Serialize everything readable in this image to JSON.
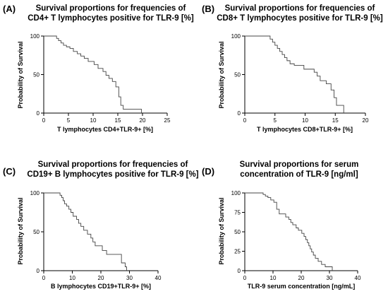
{
  "chart_data": [
    {
      "type": "line",
      "panel": "(A)",
      "title": [
        "Survival proportions for frequencies of",
        "CD4+ T lymphocytes positive for TLR-9 [%]"
      ],
      "xlabel": "T lymphocytes CD4+TLR-9+ [%]",
      "ylabel": "Probability of Survival",
      "xlim": [
        0,
        25
      ],
      "ylim": [
        0,
        100
      ],
      "xticks": [
        0,
        5,
        10,
        15,
        20,
        25
      ],
      "yticks": [
        0,
        50,
        100
      ],
      "series": [
        {
          "steps": [
            [
              0,
              100
            ],
            [
              2.6,
              100
            ],
            [
              2.6,
              97
            ],
            [
              3.0,
              97
            ],
            [
              3.0,
              94
            ],
            [
              3.5,
              94
            ],
            [
              3.5,
              91
            ],
            [
              4.0,
              91
            ],
            [
              4.0,
              88
            ],
            [
              4.6,
              88
            ],
            [
              4.6,
              86
            ],
            [
              5.3,
              86
            ],
            [
              5.3,
              84
            ],
            [
              6.0,
              84
            ],
            [
              6.0,
              80
            ],
            [
              6.8,
              80
            ],
            [
              6.8,
              77
            ],
            [
              7.5,
              77
            ],
            [
              7.5,
              74
            ],
            [
              8.2,
              74
            ],
            [
              8.2,
              71
            ],
            [
              9.0,
              71
            ],
            [
              9.0,
              67
            ],
            [
              10.2,
              67
            ],
            [
              10.2,
              63
            ],
            [
              11.0,
              63
            ],
            [
              11.0,
              58
            ],
            [
              12.0,
              58
            ],
            [
              12.0,
              54
            ],
            [
              12.6,
              54
            ],
            [
              12.6,
              49
            ],
            [
              13.2,
              49
            ],
            [
              13.2,
              45
            ],
            [
              13.9,
              45
            ],
            [
              13.9,
              41
            ],
            [
              14.6,
              41
            ],
            [
              14.6,
              34
            ],
            [
              15.2,
              34
            ],
            [
              15.2,
              21
            ],
            [
              15.6,
              21
            ],
            [
              15.6,
              10
            ],
            [
              16.1,
              10
            ],
            [
              16.1,
              5
            ],
            [
              19.8,
              5
            ],
            [
              19.8,
              0
            ]
          ]
        }
      ]
    },
    {
      "type": "line",
      "panel": "(B)",
      "title": [
        "Survival proportions for frequencies of",
        "CD8+ T lymphocytes positive for TLR-9 [%]"
      ],
      "xlabel": "T lymphocytes CD8+TLR-9+ [%]",
      "ylabel": "Probability of Survival",
      "xlim": [
        0,
        20
      ],
      "ylim": [
        0,
        100
      ],
      "xticks": [
        0,
        5,
        10,
        15,
        20
      ],
      "yticks": [
        0,
        50,
        100
      ],
      "series": [
        {
          "steps": [
            [
              0,
              100
            ],
            [
              4.2,
              100
            ],
            [
              4.2,
              96
            ],
            [
              4.6,
              96
            ],
            [
              4.6,
              92
            ],
            [
              5.0,
              92
            ],
            [
              5.0,
              88
            ],
            [
              5.4,
              88
            ],
            [
              5.4,
              84
            ],
            [
              5.8,
              84
            ],
            [
              5.8,
              80
            ],
            [
              6.2,
              80
            ],
            [
              6.2,
              76
            ],
            [
              6.6,
              76
            ],
            [
              6.6,
              72
            ],
            [
              7.0,
              72
            ],
            [
              7.0,
              68
            ],
            [
              7.5,
              68
            ],
            [
              7.5,
              64
            ],
            [
              8.2,
              64
            ],
            [
              8.2,
              62
            ],
            [
              9.8,
              62
            ],
            [
              9.8,
              57
            ],
            [
              11.5,
              57
            ],
            [
              11.5,
              53
            ],
            [
              12.0,
              53
            ],
            [
              12.0,
              48
            ],
            [
              12.5,
              48
            ],
            [
              12.5,
              42
            ],
            [
              13.5,
              42
            ],
            [
              13.5,
              38
            ],
            [
              14.3,
              38
            ],
            [
              14.3,
              30
            ],
            [
              14.8,
              30
            ],
            [
              14.8,
              20
            ],
            [
              15.2,
              20
            ],
            [
              15.2,
              10
            ],
            [
              16.4,
              10
            ],
            [
              16.4,
              0
            ]
          ]
        }
      ]
    },
    {
      "type": "line",
      "panel": "(C)",
      "title": [
        "Survival proportions for frequencies of",
        "CD19+ B lymphocytes positive for TLR-9 [%]"
      ],
      "xlabel": "B lymphocytes CD19+TLR-9+ [%]",
      "ylabel": "Probability of Survival",
      "xlim": [
        0,
        40
      ],
      "ylim": [
        0,
        100
      ],
      "xticks": [
        0,
        10,
        20,
        30,
        40
      ],
      "yticks": [
        0,
        50,
        100
      ],
      "series": [
        {
          "steps": [
            [
              0,
              100
            ],
            [
              5.7,
              100
            ],
            [
              5.7,
              97
            ],
            [
              6.3,
              97
            ],
            [
              6.3,
              94
            ],
            [
              6.8,
              94
            ],
            [
              6.8,
              90
            ],
            [
              7.3,
              90
            ],
            [
              7.3,
              86
            ],
            [
              8.0,
              86
            ],
            [
              8.0,
              83
            ],
            [
              8.8,
              83
            ],
            [
              8.8,
              79
            ],
            [
              9.5,
              79
            ],
            [
              9.5,
              75
            ],
            [
              10.3,
              75
            ],
            [
              10.3,
              70
            ],
            [
              11.5,
              70
            ],
            [
              11.5,
              66
            ],
            [
              12.2,
              66
            ],
            [
              12.2,
              61
            ],
            [
              13.0,
              61
            ],
            [
              13.0,
              57
            ],
            [
              14.0,
              57
            ],
            [
              14.0,
              52
            ],
            [
              15.3,
              52
            ],
            [
              15.3,
              47
            ],
            [
              16.5,
              47
            ],
            [
              16.5,
              42
            ],
            [
              17.2,
              42
            ],
            [
              17.2,
              37
            ],
            [
              18.0,
              37
            ],
            [
              18.0,
              32
            ],
            [
              20.5,
              32
            ],
            [
              20.5,
              26
            ],
            [
              22.0,
              26
            ],
            [
              22.0,
              21
            ],
            [
              27.2,
              21
            ],
            [
              27.2,
              10
            ],
            [
              28.5,
              10
            ],
            [
              28.5,
              5
            ],
            [
              29.0,
              5
            ],
            [
              29.0,
              0
            ]
          ]
        }
      ]
    },
    {
      "type": "line",
      "panel": "(D)",
      "title": [
        "Survival proportions for serum",
        "concentration of TLR-9 [ng/ml]"
      ],
      "xlabel": "TLR-9 serum concentration [ng/mL]",
      "ylabel": "Probability of Survival",
      "xlim": [
        0,
        40
      ],
      "ylim": [
        0,
        100
      ],
      "xticks": [
        0,
        10,
        20,
        30,
        40
      ],
      "yticks": [
        0,
        25,
        50,
        75,
        100
      ],
      "series": [
        {
          "steps": [
            [
              0,
              100
            ],
            [
              6.5,
              100
            ],
            [
              6.5,
              98
            ],
            [
              7.3,
              98
            ],
            [
              7.3,
              96
            ],
            [
              8.2,
              96
            ],
            [
              8.2,
              94
            ],
            [
              9.2,
              94
            ],
            [
              9.2,
              91
            ],
            [
              10.3,
              91
            ],
            [
              10.3,
              88
            ],
            [
              11.3,
              88
            ],
            [
              11.3,
              79
            ],
            [
              12.2,
              79
            ],
            [
              12.2,
              73
            ],
            [
              14.5,
              73
            ],
            [
              14.5,
              69
            ],
            [
              15.6,
              69
            ],
            [
              15.6,
              66
            ],
            [
              16.3,
              66
            ],
            [
              16.3,
              62
            ],
            [
              17.0,
              62
            ],
            [
              17.0,
              59
            ],
            [
              18.2,
              59
            ],
            [
              18.2,
              55
            ],
            [
              19.0,
              55
            ],
            [
              19.0,
              52
            ],
            [
              20.2,
              52
            ],
            [
              20.2,
              48
            ],
            [
              21.0,
              48
            ],
            [
              21.0,
              44
            ],
            [
              21.6,
              44
            ],
            [
              21.6,
              40
            ],
            [
              22.2,
              40
            ],
            [
              22.2,
              36
            ],
            [
              22.7,
              36
            ],
            [
              22.7,
              32
            ],
            [
              23.2,
              32
            ],
            [
              23.2,
              28
            ],
            [
              23.7,
              28
            ],
            [
              23.7,
              24
            ],
            [
              24.3,
              24
            ],
            [
              24.3,
              20
            ],
            [
              25.0,
              20
            ],
            [
              25.0,
              16
            ],
            [
              26.0,
              16
            ],
            [
              26.0,
              12
            ],
            [
              27.2,
              12
            ],
            [
              27.2,
              8
            ],
            [
              28.5,
              8
            ],
            [
              28.5,
              5
            ],
            [
              31.0,
              5
            ],
            [
              31.0,
              0
            ]
          ]
        }
      ]
    }
  ]
}
